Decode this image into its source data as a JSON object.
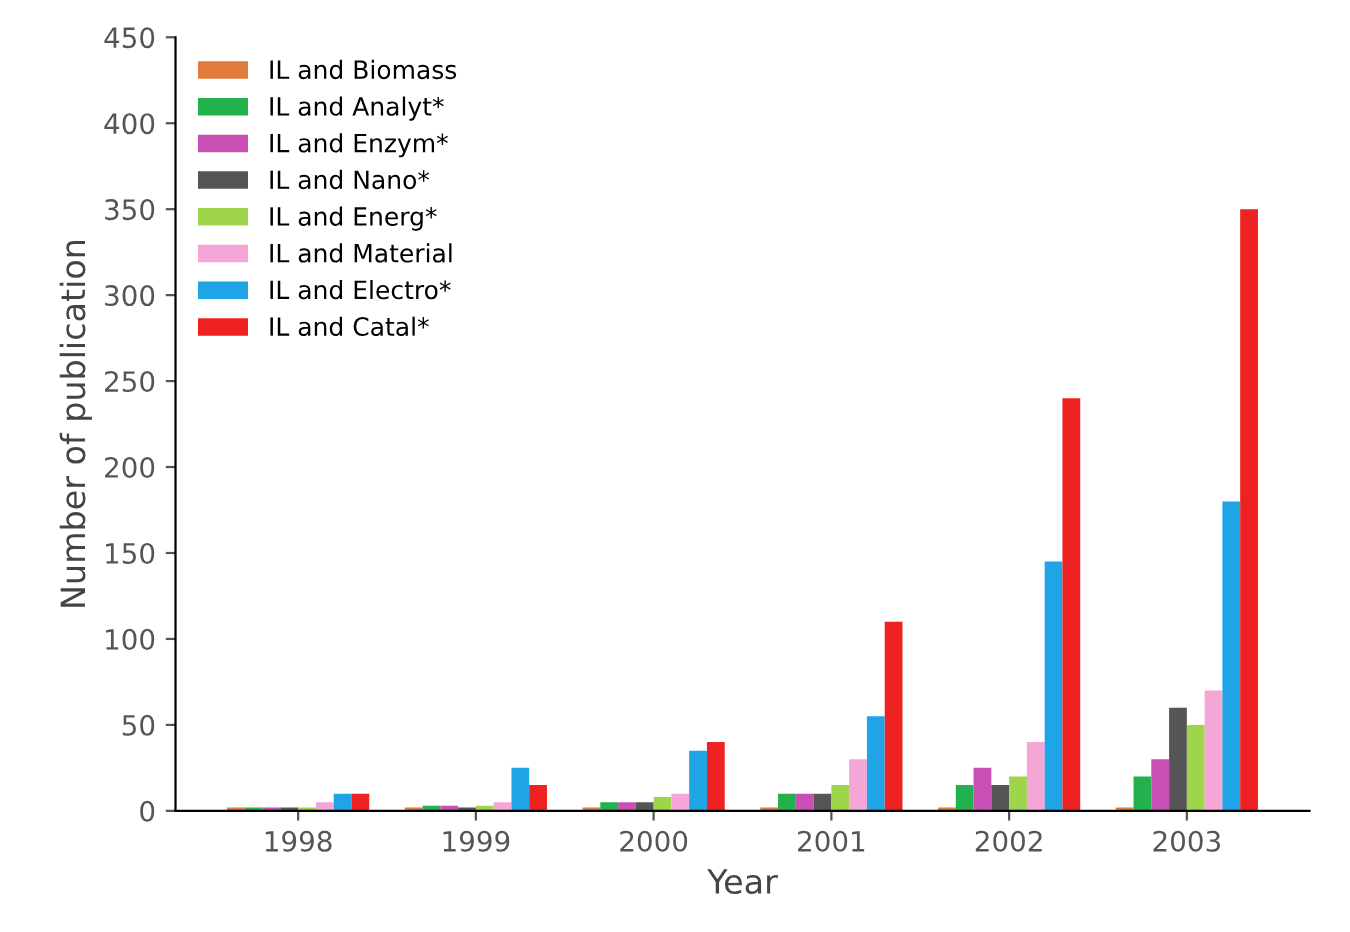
{
  "chart_data": {
    "type": "bar",
    "xlabel": "Year",
    "ylabel": "Number of publication",
    "categories": [
      "1998",
      "1999",
      "2000",
      "2001",
      "2002",
      "2003"
    ],
    "ylim": [
      0,
      450
    ],
    "yticks": [
      0,
      50,
      100,
      150,
      200,
      250,
      300,
      350,
      400,
      450
    ],
    "grid": false,
    "legend": "top left",
    "series": [
      {
        "name": "IL and Biomass",
        "color": "#e07b39",
        "values": [
          2,
          2,
          2,
          2,
          2,
          2
        ]
      },
      {
        "name": "IL and Analyt*",
        "color": "#22b14c",
        "values": [
          2,
          3,
          5,
          10,
          15,
          20
        ]
      },
      {
        "name": "IL and Enzym*",
        "color": "#c94fb4",
        "values": [
          2,
          3,
          5,
          10,
          25,
          30
        ]
      },
      {
        "name": "IL and Nano*",
        "color": "#555555",
        "values": [
          2,
          2,
          5,
          10,
          15,
          60
        ]
      },
      {
        "name": "IL and Energ*",
        "color": "#9fd54a",
        "values": [
          2,
          3,
          8,
          15,
          20,
          50
        ]
      },
      {
        "name": "IL and Material",
        "color": "#f4a6d7",
        "values": [
          5,
          5,
          10,
          30,
          40,
          70
        ]
      },
      {
        "name": "IL and Electro*",
        "color": "#1fa5e6",
        "values": [
          10,
          25,
          35,
          55,
          145,
          180
        ]
      },
      {
        "name": "IL and Catal*",
        "color": "#ee2222",
        "values": [
          10,
          15,
          40,
          110,
          240,
          350
        ]
      }
    ]
  }
}
